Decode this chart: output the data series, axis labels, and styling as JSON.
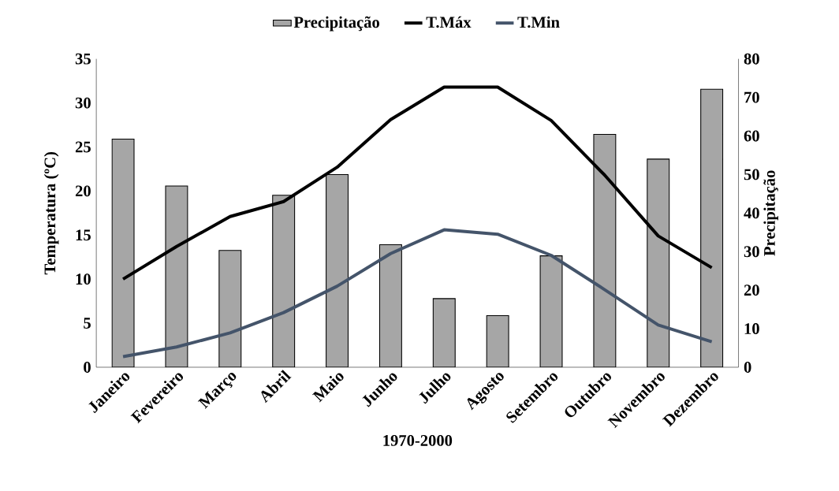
{
  "chart_data": {
    "type": "line",
    "xlabel": "1970-2000",
    "ylabel": "Temperatura (ºC)",
    "y2label": "Precipitação",
    "categories": [
      "Janeiro",
      "Fevereiro",
      "Março",
      "Abril",
      "Maio",
      "Junho",
      "Julho",
      "Agosto",
      "Setembro",
      "Outubro",
      "Novembro",
      "Dezembro"
    ],
    "series": [
      {
        "name": "Precipitação",
        "type": "bar",
        "axis": "y2",
        "color": "#a6a6a6",
        "values": [
          59.2,
          47.0,
          30.3,
          44.6,
          50.0,
          31.8,
          17.8,
          13.4,
          28.9,
          60.4,
          54.0,
          72.1
        ]
      },
      {
        "name": "T.Máx",
        "color": "#000000",
        "values": [
          10.0,
          13.7,
          17.1,
          18.8,
          22.7,
          28.1,
          31.8,
          31.8,
          28.0,
          21.8,
          14.9,
          11.3
        ]
      },
      {
        "name": "T.Min",
        "color": "#44546a",
        "values": [
          1.2,
          2.3,
          3.9,
          6.2,
          9.2,
          12.9,
          15.6,
          15.1,
          12.7,
          8.8,
          4.8,
          2.9
        ]
      }
    ],
    "ylim": [
      0,
      35
    ],
    "yticks": [
      0,
      5,
      10,
      15,
      20,
      25,
      30,
      35
    ],
    "y2lim": [
      0,
      80
    ],
    "y2ticks": [
      0,
      10,
      20,
      30,
      40,
      50,
      60,
      70,
      80
    ],
    "legend": "top",
    "grid": false,
    "marker": "none",
    "line_style": "solid"
  }
}
